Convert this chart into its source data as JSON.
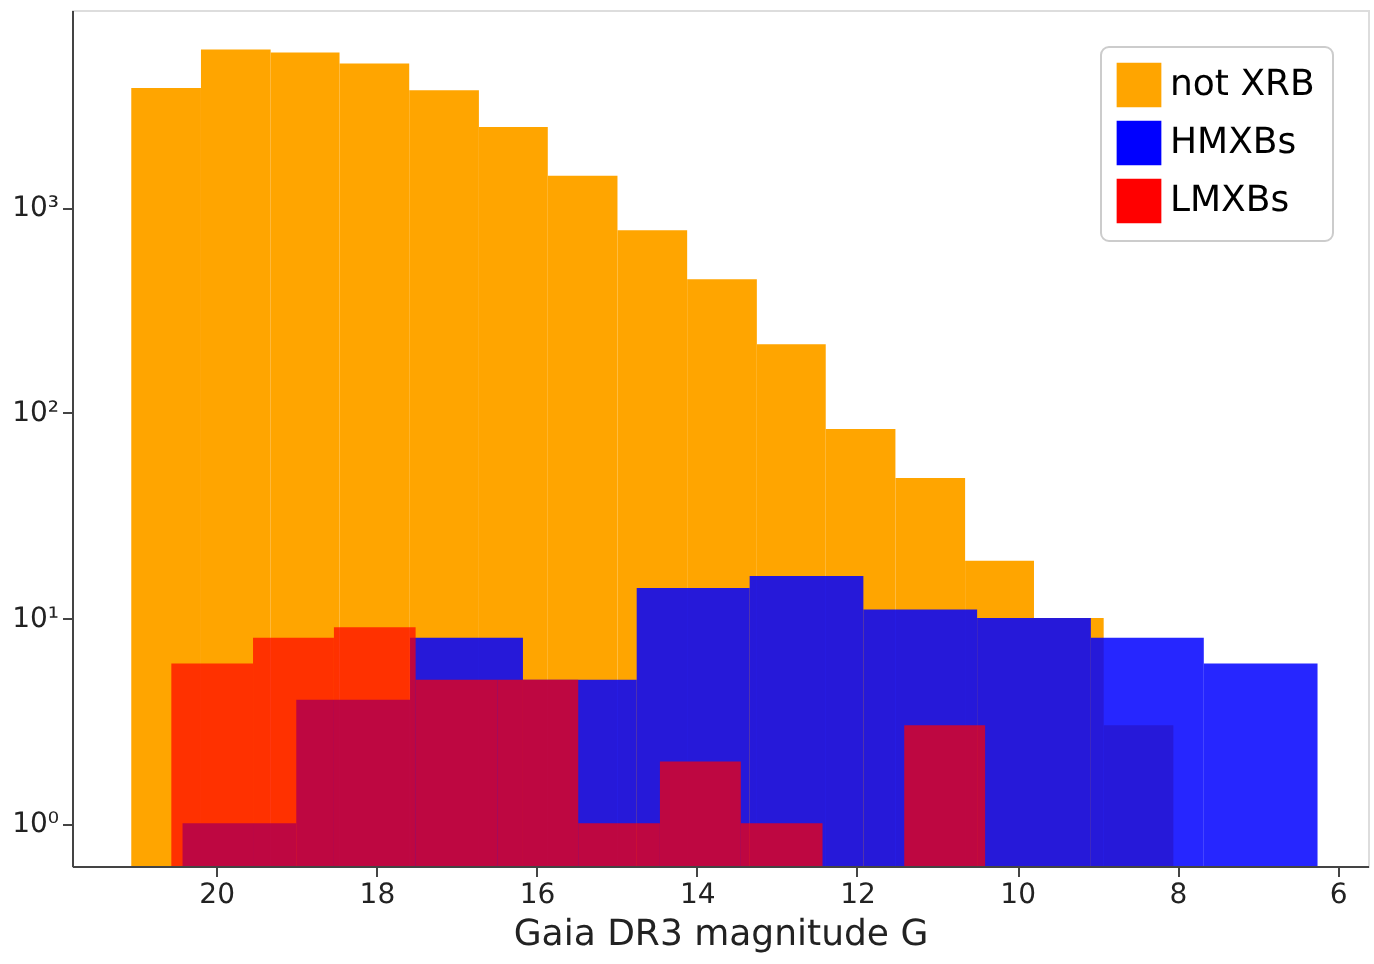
{
  "chart_data": {
    "type": "histogram",
    "xlabel": "Gaia DR3 magnitude G",
    "bins": [
      21.06,
      20.19,
      19.32,
      18.46,
      17.59,
      16.72,
      15.86,
      14.99,
      14.12,
      13.25,
      12.39,
      11.52,
      10.65,
      9.79,
      8.92,
      8.05
    ],
    "series": [
      {
        "name": "not XRB",
        "color": "#ffa500",
        "values": [
          3800,
          5850,
          5650,
          5000,
          3700,
          2450,
          1420,
          770,
          445,
          215,
          83,
          48,
          19,
          10,
          3
        ]
      },
      {
        "name": "HMXBs",
        "color": "#0000ff",
        "bins": [
          20.42,
          19.0,
          17.58,
          16.17,
          14.75,
          13.34,
          11.92,
          10.5,
          9.08,
          7.67,
          6.25
        ],
        "values": [
          1,
          4,
          8,
          5,
          14,
          16,
          11,
          10,
          8,
          6
        ]
      },
      {
        "name": "LMXBs",
        "color": "#ff0000",
        "bins": [
          20.56,
          19.54,
          18.53,
          17.51,
          16.49,
          15.48,
          14.46,
          13.45,
          12.43,
          11.41,
          10.4
        ],
        "values": [
          6,
          8,
          9,
          5,
          5,
          1,
          2,
          1,
          null,
          3
        ]
      }
    ],
    "log": "y",
    "xlim": [
      21.8,
      5.62
    ],
    "xticks": [
      20,
      18,
      16,
      14,
      12,
      10,
      8,
      6
    ],
    "ylim": [
      0.62,
      9100
    ],
    "yticks": [
      {
        "value": 1,
        "label": "10⁰"
      },
      {
        "value": 10,
        "label": "10¹"
      },
      {
        "value": 100,
        "label": "10²"
      },
      {
        "value": 1000,
        "label": "10³"
      }
    ],
    "grid": false,
    "legend": "top right"
  }
}
